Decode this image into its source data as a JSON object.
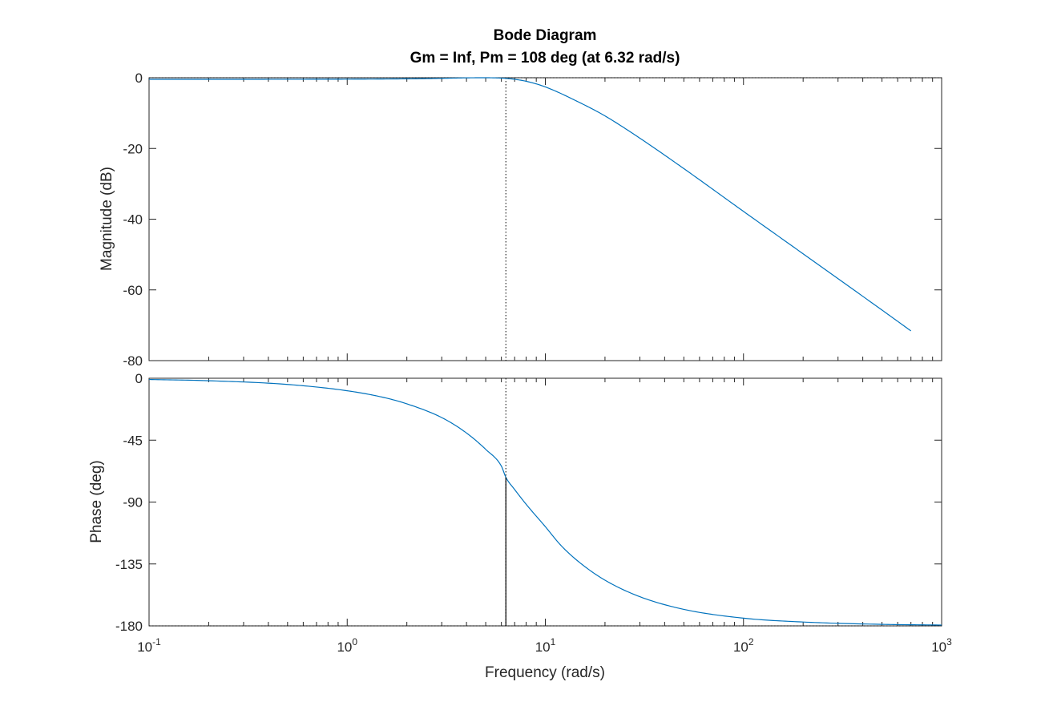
{
  "chart_data": [
    {
      "type": "line",
      "title": "Bode Diagram",
      "subtitle": "Gm = Inf,  Pm = 108 deg (at 6.32 rad/s)",
      "xlabel": "",
      "ylabel": "Magnitude (dB)",
      "xscale": "log",
      "xlim": [
        0.1,
        1000
      ],
      "ylim": [
        -80,
        0
      ],
      "yticks": [
        "0",
        "-20",
        "-40",
        "-60",
        "-80"
      ],
      "ytick_values": [
        0,
        -20,
        -40,
        -60,
        -80
      ],
      "grid": false,
      "series": [
        {
          "x": [
            0.1,
            0.2,
            0.5,
            1,
            2,
            3,
            4,
            5,
            6,
            6.32,
            7,
            8,
            10,
            15,
            20,
            30,
            50,
            100,
            200,
            500,
            700
          ],
          "y": [
            -0.45,
            -0.45,
            -0.44,
            -0.41,
            -0.31,
            -0.17,
            -0.03,
            0.0,
            -0.1,
            -0.18,
            -0.45,
            -1.0,
            -2.6,
            -7.1,
            -10.8,
            -17.1,
            -25.7,
            -37.8,
            -49.8,
            -65.7,
            -71.6
          ]
        }
      ],
      "reference_lines": [
        {
          "orientation": "horizontal",
          "y": 0,
          "style": "dotted"
        },
        {
          "orientation": "vertical",
          "x": 6.32,
          "style": "dotted"
        }
      ],
      "color": "#0072BD"
    },
    {
      "type": "line",
      "xlabel": "Frequency  (rad/s)",
      "ylabel": "Phase (deg)",
      "xscale": "log",
      "xlim": [
        0.1,
        1000
      ],
      "ylim": [
        -180,
        0
      ],
      "yticks": [
        "0",
        "-45",
        "-90",
        "-135",
        "-180"
      ],
      "ytick_values": [
        0,
        -45,
        -90,
        -135,
        -180
      ],
      "xtick_base": "10",
      "xtick_exponents": [
        "-1",
        "0",
        "1",
        "2",
        "3"
      ],
      "xtick_values": [
        0.1,
        1,
        10,
        100,
        1000
      ],
      "grid": false,
      "series": [
        {
          "x": [
            0.1,
            0.2,
            0.5,
            1,
            1.5,
            2,
            3,
            4,
            5,
            6,
            6.32,
            7,
            8,
            10,
            12,
            15,
            20,
            30,
            50,
            100,
            200,
            500,
            1000
          ],
          "y": [
            -0.9,
            -1.8,
            -4.5,
            -9.1,
            -13.7,
            -18.6,
            -28.6,
            -39.8,
            -51.7,
            -63.9,
            -72.0,
            -80.9,
            -91.6,
            -107.9,
            -121.6,
            -134.3,
            -146.8,
            -158.8,
            -168.0,
            -174.4,
            -177.2,
            -178.9,
            -179.4
          ]
        }
      ],
      "reference_lines": [
        {
          "orientation": "horizontal",
          "y": -180,
          "style": "dotted"
        },
        {
          "orientation": "vertical",
          "x": 6.32,
          "style": "dotted"
        }
      ],
      "phase_margin_marker": {
        "x": 6.32,
        "y_from": -180,
        "y_to": -72
      },
      "color": "#0072BD"
    }
  ]
}
